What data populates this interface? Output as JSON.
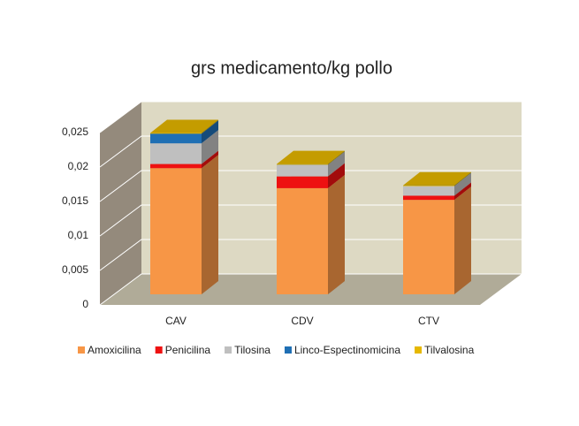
{
  "chart_data": {
    "type": "bar3d_stacked",
    "title": "grs medicamento/kg pollo",
    "categories": [
      "CAV",
      "CDV",
      "CTV"
    ],
    "series": [
      {
        "name": "Amoxicilina",
        "color": "#f79646",
        "values": [
          0.0183,
          0.0154,
          0.0137
        ]
      },
      {
        "name": "Penicilina",
        "color": "#ee1111",
        "values": [
          0.0006,
          0.0017,
          0.0006
        ]
      },
      {
        "name": "Tilosina",
        "color": "#bfbfbf",
        "values": [
          0.003,
          0.0017,
          0.0014
        ]
      },
      {
        "name": "Linco-Espectinomicina",
        "color": "#1f6fb4",
        "values": [
          0.0014,
          0,
          0
        ]
      },
      {
        "name": "Tilvalosina",
        "color": "#e6b800",
        "values": [
          0.0001,
          0.0001,
          0.0001
        ]
      }
    ],
    "ylim": [
      0,
      0.025
    ],
    "yticks": [
      0,
      {
        "value": 0.005,
        "label": "0,005"
      },
      {
        "value": 0.01,
        "label": "0,01"
      },
      {
        "value": 0.015,
        "label": "0,015"
      },
      {
        "value": 0.02,
        "label": "0,02"
      },
      {
        "value": 0.025,
        "label": "0,025"
      }
    ],
    "grid": true
  }
}
